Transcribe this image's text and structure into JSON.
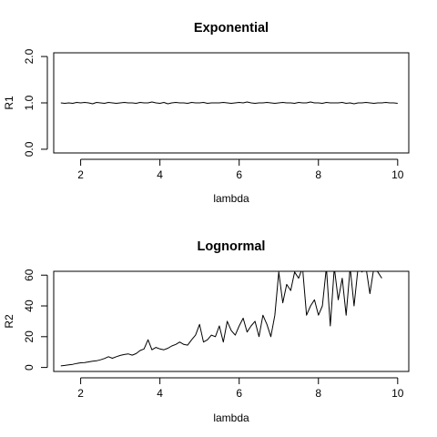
{
  "chart_data": [
    {
      "type": "line",
      "title": "Exponential",
      "xlabel": "lambda",
      "ylabel": "R1",
      "xlim": [
        1.32,
        10.28
      ],
      "ylim": [
        -0.08,
        2.08
      ],
      "xticks": [
        2,
        4,
        6,
        8,
        10
      ],
      "xtick_labels": [
        "2",
        "4",
        "6",
        "8",
        "10"
      ],
      "yticks": [
        0,
        1,
        2
      ],
      "ytick_labels": [
        "0.0",
        "1.0",
        "2.0"
      ],
      "grid": false,
      "series": [
        {
          "x": [
            1.5,
            1.6,
            1.7,
            1.8,
            1.9,
            2.0,
            2.1,
            2.2,
            2.3,
            2.4,
            2.5,
            2.6,
            2.7,
            2.8,
            2.9,
            3.0,
            3.1,
            3.2,
            3.3,
            3.4,
            3.5,
            3.6,
            3.7,
            3.8,
            3.9,
            4.0,
            4.1,
            4.2,
            4.3,
            4.4,
            4.5,
            4.6,
            4.7,
            4.8,
            4.9,
            5.0,
            5.1,
            5.2,
            5.3,
            5.4,
            5.5,
            5.6,
            5.7,
            5.8,
            5.9,
            6.0,
            6.1,
            6.2,
            6.3,
            6.4,
            6.5,
            6.6,
            6.7,
            6.8,
            6.9,
            7.0,
            7.1,
            7.2,
            7.3,
            7.4,
            7.5,
            7.6,
            7.7,
            7.8,
            7.9,
            8.0,
            8.1,
            8.2,
            8.3,
            8.4,
            8.5,
            8.6,
            8.7,
            8.8,
            8.9,
            9.0,
            9.1,
            9.2,
            9.3,
            9.4,
            9.5,
            9.6,
            9.7,
            9.8,
            9.9,
            10.0
          ],
          "values": [
            1.0,
            0.99,
            1.0,
            0.99,
            1.01,
            1.0,
            1.01,
            1.0,
            0.98,
            1.01,
            1.0,
            0.99,
            1.01,
            1.0,
            0.99,
            1.0,
            1.01,
            1.0,
            1.0,
            0.99,
            1.01,
            1.0,
            1.0,
            1.02,
            1.0,
            0.99,
            1.01,
            0.98,
            1.0,
            1.01,
            1.0,
            1.0,
            0.99,
            1.01,
            1.0,
            1.0,
            1.01,
            0.99,
            1.0,
            1.0,
            1.0,
            1.01,
            1.0,
            0.99,
            1.0,
            1.01,
            1.0,
            1.02,
            1.0,
            0.99,
            1.0,
            1.0,
            1.01,
            1.0,
            0.99,
            1.0,
            1.01,
            1.0,
            1.0,
            0.99,
            1.01,
            1.0,
            1.0,
            1.02,
            1.0,
            1.0,
            0.99,
            1.01,
            1.0,
            1.0,
            1.0,
            1.01,
            0.99,
            1.0,
            0.98,
            1.0,
            1.0,
            1.01,
            1.0,
            0.99,
            1.0,
            1.0,
            1.01,
            1.0,
            1.0,
            0.99
          ]
        }
      ]
    },
    {
      "type": "line",
      "title": "Lognormal",
      "xlabel": "lambda",
      "ylabel": "R2",
      "xlim": [
        1.32,
        10.28
      ],
      "ylim": [
        -2.6,
        62.5
      ],
      "xticks": [
        2,
        4,
        6,
        8,
        10
      ],
      "xtick_labels": [
        "2",
        "4",
        "6",
        "8",
        "10"
      ],
      "yticks": [
        0,
        20,
        40,
        60
      ],
      "ytick_labels": [
        "0",
        "20",
        "40",
        "60"
      ],
      "grid": false,
      "series": [
        {
          "x": [
            1.5,
            1.6,
            1.7,
            1.8,
            1.9,
            2.0,
            2.1,
            2.2,
            2.3,
            2.4,
            2.5,
            2.6,
            2.7,
            2.8,
            2.9,
            3.0,
            3.1,
            3.2,
            3.3,
            3.4,
            3.5,
            3.6,
            3.7,
            3.8,
            3.9,
            4.0,
            4.1,
            4.2,
            4.3,
            4.4,
            4.5,
            4.6,
            4.7,
            4.8,
            4.9,
            5.0,
            5.1,
            5.2,
            5.3,
            5.4,
            5.5,
            5.6,
            5.7,
            5.8,
            5.9,
            6.0,
            6.1,
            6.2,
            6.3,
            6.4,
            6.5,
            6.6,
            6.7,
            6.8,
            6.9,
            7.0,
            7.1,
            7.2,
            7.3,
            7.4,
            7.5,
            7.6,
            7.7,
            7.8,
            7.9,
            8.0,
            8.1,
            8.2,
            8.3,
            8.4,
            8.5,
            8.6,
            8.7,
            8.8,
            8.9,
            9.0,
            9.1,
            9.2,
            9.3,
            9.4,
            9.5,
            9.6
          ],
          "values": [
            1.0,
            1.3,
            1.7,
            2.0,
            2.6,
            3.0,
            3.2,
            3.6,
            4.0,
            4.3,
            5.0,
            5.8,
            7.0,
            6.0,
            7.0,
            7.8,
            8.4,
            8.8,
            8.0,
            9.0,
            11.0,
            12.0,
            18.0,
            11.5,
            13.0,
            12.0,
            11.5,
            12.5,
            14.0,
            15.0,
            16.5,
            15.0,
            14.5,
            18.0,
            21.0,
            28.0,
            16.5,
            18.0,
            21.0,
            20.0,
            27.0,
            16.5,
            30.0,
            24.0,
            21.0,
            27.0,
            32.0,
            23.0,
            27.0,
            30.0,
            20.0,
            34.0,
            28.0,
            20.0,
            34.0,
            62.0,
            42.0,
            54.0,
            50.0,
            62.0,
            58.0,
            65.0,
            34.0,
            40.0,
            44.0,
            34.0,
            40.0,
            65.0,
            27.0,
            65.0,
            44.0,
            58.0,
            34.0,
            65.0,
            40.0,
            65.0,
            62.0,
            65.0,
            48.0,
            65.0,
            62.0,
            58.0
          ]
        }
      ]
    }
  ]
}
